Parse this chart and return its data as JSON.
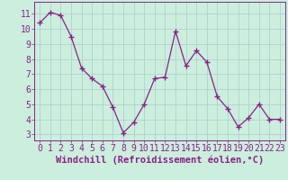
{
  "x": [
    0,
    1,
    2,
    3,
    4,
    5,
    6,
    7,
    8,
    9,
    10,
    11,
    12,
    13,
    14,
    15,
    16,
    17,
    18,
    19,
    20,
    21,
    22,
    23
  ],
  "y": [
    10.4,
    11.1,
    10.9,
    9.5,
    7.4,
    6.7,
    6.2,
    4.8,
    3.1,
    3.8,
    5.0,
    6.7,
    6.8,
    9.85,
    7.55,
    8.55,
    7.8,
    5.5,
    4.7,
    3.5,
    4.1,
    5.0,
    4.0,
    4.0
  ],
  "line_color": "#882288",
  "marker_color": "#882288",
  "bg_color": "#cceedd",
  "grid_color": "#aacccc",
  "xlabel": "Windchill (Refroidissement éolien,°C)",
  "ylabel_ticks": [
    3,
    4,
    5,
    6,
    7,
    8,
    9,
    10,
    11
  ],
  "xlim": [
    -0.5,
    23.5
  ],
  "ylim": [
    2.6,
    11.8
  ],
  "xticks": [
    0,
    1,
    2,
    3,
    4,
    5,
    6,
    7,
    8,
    9,
    10,
    11,
    12,
    13,
    14,
    15,
    16,
    17,
    18,
    19,
    20,
    21,
    22,
    23
  ],
  "xlabel_fontsize": 7.5,
  "tick_fontsize": 7,
  "line_color_spine": "#882288",
  "tick_color": "#882288"
}
